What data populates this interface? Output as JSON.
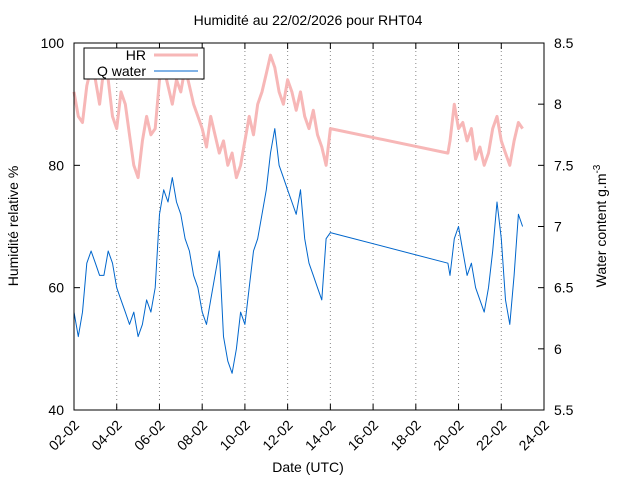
{
  "chart_data": {
    "type": "line",
    "title": "Humidité au 22/02/2026 pour RHT04",
    "xlabel": "Date (UTC)",
    "ylabel_left": "Humidité relative %",
    "ylabel_right_main": "Water content g.m",
    "ylabel_right_sup": "-3",
    "x_axis": {
      "min_day": 2,
      "max_day": 24,
      "ticks": [
        {
          "day": 2,
          "label": "02-02"
        },
        {
          "day": 4,
          "label": "04-02"
        },
        {
          "day": 6,
          "label": "06-02"
        },
        {
          "day": 8,
          "label": "08-02"
        },
        {
          "day": 10,
          "label": "10-02"
        },
        {
          "day": 12,
          "label": "12-02"
        },
        {
          "day": 14,
          "label": "14-02"
        },
        {
          "day": 16,
          "label": "16-02"
        },
        {
          "day": 18,
          "label": "18-02"
        },
        {
          "day": 20,
          "label": "20-02"
        },
        {
          "day": 22,
          "label": "22-02"
        },
        {
          "day": 24,
          "label": "24-02"
        }
      ]
    },
    "y_left": {
      "min": 40,
      "max": 100,
      "ticks": [
        "40",
        "60",
        "80",
        "100"
      ]
    },
    "y_right": {
      "min": 5.5,
      "max": 8.5,
      "ticks": [
        "5.5",
        "6",
        "6.5",
        "7",
        "7.5",
        "8",
        "8.5"
      ]
    },
    "grid": "vertical dotted lines at x ticks",
    "legend_position": "top-left",
    "series": [
      {
        "name": "HR",
        "axis": "left",
        "color": "#f7b7b7",
        "points": [
          [
            2.0,
            92
          ],
          [
            2.2,
            88
          ],
          [
            2.4,
            87
          ],
          [
            2.6,
            93
          ],
          [
            2.8,
            96
          ],
          [
            3.0,
            94
          ],
          [
            3.2,
            90
          ],
          [
            3.4,
            96
          ],
          [
            3.6,
            94
          ],
          [
            3.8,
            88
          ],
          [
            4.0,
            86
          ],
          [
            4.2,
            92
          ],
          [
            4.4,
            90
          ],
          [
            4.6,
            85
          ],
          [
            4.8,
            80
          ],
          [
            5.0,
            78
          ],
          [
            5.2,
            84
          ],
          [
            5.4,
            88
          ],
          [
            5.6,
            85
          ],
          [
            5.8,
            86
          ],
          [
            6.0,
            94
          ],
          [
            6.2,
            96
          ],
          [
            6.4,
            93
          ],
          [
            6.6,
            90
          ],
          [
            6.8,
            94
          ],
          [
            7.0,
            92
          ],
          [
            7.2,
            96
          ],
          [
            7.4,
            93
          ],
          [
            7.6,
            90
          ],
          [
            7.8,
            88
          ],
          [
            8.0,
            86
          ],
          [
            8.2,
            83
          ],
          [
            8.4,
            88
          ],
          [
            8.6,
            85
          ],
          [
            8.8,
            82
          ],
          [
            9.0,
            84
          ],
          [
            9.2,
            80
          ],
          [
            9.4,
            82
          ],
          [
            9.6,
            78
          ],
          [
            9.8,
            80
          ],
          [
            10.0,
            84
          ],
          [
            10.2,
            88
          ],
          [
            10.4,
            85
          ],
          [
            10.6,
            90
          ],
          [
            10.8,
            92
          ],
          [
            11.0,
            95
          ],
          [
            11.2,
            98
          ],
          [
            11.4,
            96
          ],
          [
            11.6,
            92
          ],
          [
            11.8,
            90
          ],
          [
            12.0,
            94
          ],
          [
            12.2,
            92
          ],
          [
            12.4,
            89
          ],
          [
            12.6,
            92
          ],
          [
            12.8,
            88
          ],
          [
            13.0,
            86
          ],
          [
            13.2,
            89
          ],
          [
            13.4,
            85
          ],
          [
            13.6,
            83
          ],
          [
            13.8,
            80
          ],
          [
            14.0,
            86
          ],
          [
            19.5,
            82
          ],
          [
            19.6,
            84
          ],
          [
            19.8,
            90
          ],
          [
            20.0,
            86
          ],
          [
            20.2,
            87
          ],
          [
            20.4,
            84
          ],
          [
            20.6,
            86
          ],
          [
            20.8,
            81
          ],
          [
            21.0,
            83
          ],
          [
            21.2,
            80
          ],
          [
            21.4,
            82
          ],
          [
            21.6,
            86
          ],
          [
            21.8,
            88
          ],
          [
            22.0,
            84
          ],
          [
            22.2,
            82
          ],
          [
            22.4,
            80
          ],
          [
            22.6,
            84
          ],
          [
            22.8,
            87
          ],
          [
            23.0,
            86
          ]
        ]
      },
      {
        "name": "Q water",
        "axis": "right",
        "color": "#0066cc",
        "points": [
          [
            2.0,
            6.3
          ],
          [
            2.2,
            6.1
          ],
          [
            2.4,
            6.3
          ],
          [
            2.6,
            6.7
          ],
          [
            2.8,
            6.8
          ],
          [
            3.0,
            6.7
          ],
          [
            3.2,
            6.6
          ],
          [
            3.4,
            6.6
          ],
          [
            3.6,
            6.8
          ],
          [
            3.8,
            6.7
          ],
          [
            4.0,
            6.5
          ],
          [
            4.2,
            6.4
          ],
          [
            4.4,
            6.3
          ],
          [
            4.6,
            6.2
          ],
          [
            4.8,
            6.3
          ],
          [
            5.0,
            6.1
          ],
          [
            5.2,
            6.2
          ],
          [
            5.4,
            6.4
          ],
          [
            5.6,
            6.3
          ],
          [
            5.8,
            6.5
          ],
          [
            6.0,
            7.1
          ],
          [
            6.2,
            7.3
          ],
          [
            6.4,
            7.2
          ],
          [
            6.6,
            7.4
          ],
          [
            6.8,
            7.2
          ],
          [
            7.0,
            7.1
          ],
          [
            7.2,
            6.9
          ],
          [
            7.4,
            6.8
          ],
          [
            7.6,
            6.6
          ],
          [
            7.8,
            6.5
          ],
          [
            8.0,
            6.3
          ],
          [
            8.2,
            6.2
          ],
          [
            8.4,
            6.4
          ],
          [
            8.6,
            6.6
          ],
          [
            8.8,
            6.8
          ],
          [
            9.0,
            6.1
          ],
          [
            9.2,
            5.9
          ],
          [
            9.4,
            5.8
          ],
          [
            9.6,
            6.0
          ],
          [
            9.8,
            6.3
          ],
          [
            10.0,
            6.2
          ],
          [
            10.2,
            6.5
          ],
          [
            10.4,
            6.8
          ],
          [
            10.6,
            6.9
          ],
          [
            10.8,
            7.1
          ],
          [
            11.0,
            7.3
          ],
          [
            11.2,
            7.6
          ],
          [
            11.4,
            7.8
          ],
          [
            11.6,
            7.5
          ],
          [
            11.8,
            7.4
          ],
          [
            12.0,
            7.3
          ],
          [
            12.2,
            7.2
          ],
          [
            12.4,
            7.1
          ],
          [
            12.6,
            7.3
          ],
          [
            12.8,
            6.9
          ],
          [
            13.0,
            6.7
          ],
          [
            13.2,
            6.6
          ],
          [
            13.4,
            6.5
          ],
          [
            13.6,
            6.4
          ],
          [
            13.8,
            6.9
          ],
          [
            14.0,
            6.95
          ],
          [
            19.5,
            6.7
          ],
          [
            19.6,
            6.6
          ],
          [
            19.8,
            6.9
          ],
          [
            20.0,
            7.0
          ],
          [
            20.2,
            6.8
          ],
          [
            20.4,
            6.6
          ],
          [
            20.6,
            6.7
          ],
          [
            20.8,
            6.5
          ],
          [
            21.0,
            6.4
          ],
          [
            21.2,
            6.3
          ],
          [
            21.4,
            6.5
          ],
          [
            21.6,
            6.8
          ],
          [
            21.8,
            7.2
          ],
          [
            22.0,
            6.9
          ],
          [
            22.2,
            6.4
          ],
          [
            22.4,
            6.2
          ],
          [
            22.6,
            6.6
          ],
          [
            22.8,
            7.1
          ],
          [
            23.0,
            7.0
          ]
        ]
      }
    ]
  }
}
